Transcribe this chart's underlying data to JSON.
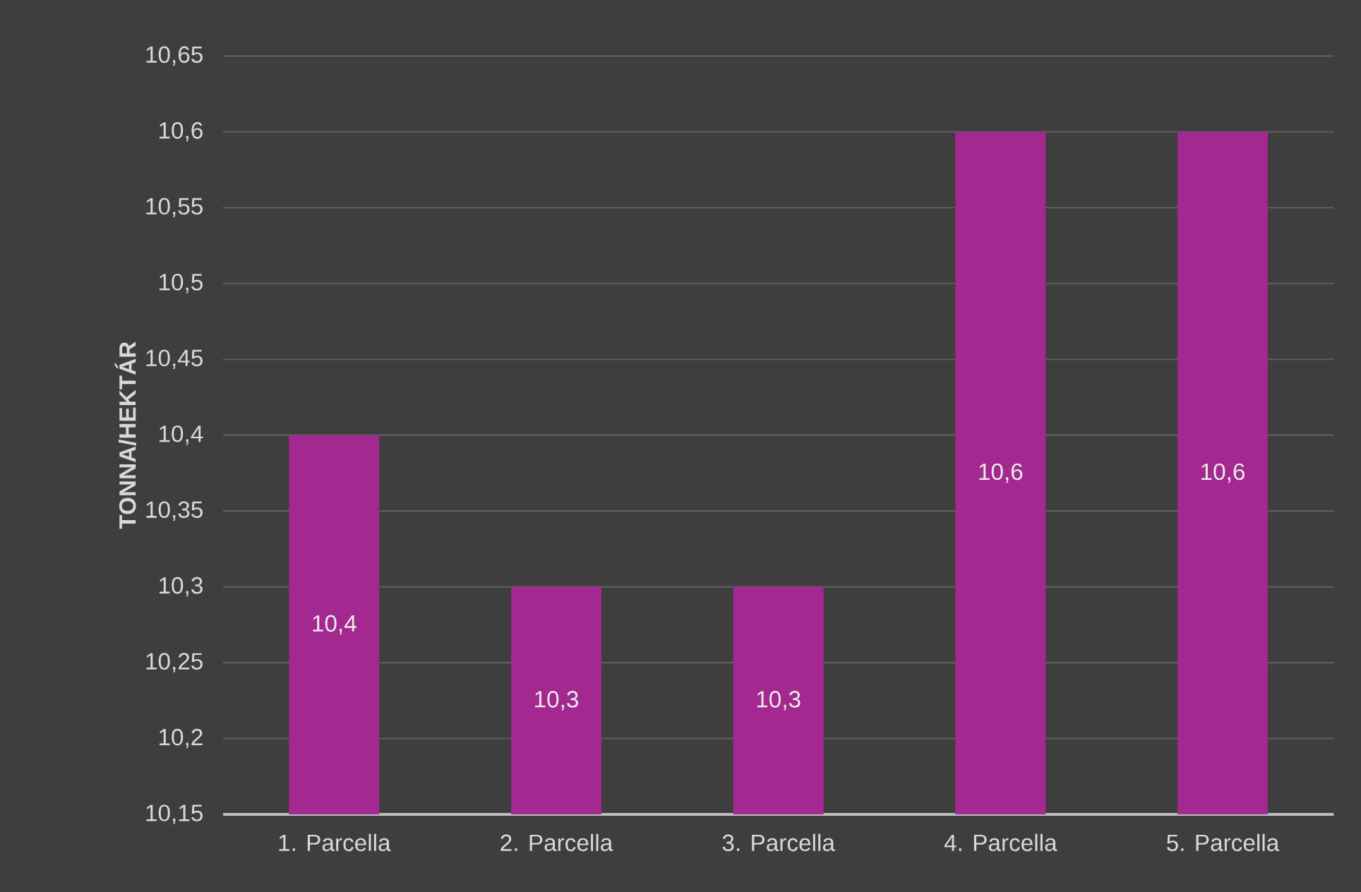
{
  "chart_data": {
    "type": "bar",
    "ylabel": "TONNA/HEKTÁR",
    "categories": [
      "1. Parcella",
      "2. Parcella",
      "3. Parcella",
      "4. Parcella",
      "5. Parcella"
    ],
    "values": [
      10.4,
      10.3,
      10.3,
      10.6,
      10.6
    ],
    "value_labels": [
      "10,4",
      "10,3",
      "10,3",
      "10,6",
      "10,6"
    ],
    "color": "#a3288f",
    "ylim": [
      10.15,
      10.65
    ],
    "yticks": [
      {
        "value": 10.15,
        "label": "10,15"
      },
      {
        "value": 10.2,
        "label": "10,2"
      },
      {
        "value": 10.25,
        "label": "10,25"
      },
      {
        "value": 10.3,
        "label": "10,3"
      },
      {
        "value": 10.35,
        "label": "10,35"
      },
      {
        "value": 10.4,
        "label": "10,4"
      },
      {
        "value": 10.45,
        "label": "10,45"
      },
      {
        "value": 10.5,
        "label": "10,5"
      },
      {
        "value": 10.55,
        "label": "10,55"
      },
      {
        "value": 10.6,
        "label": "10,6"
      },
      {
        "value": 10.65,
        "label": "10,65"
      }
    ],
    "grid": "y"
  }
}
